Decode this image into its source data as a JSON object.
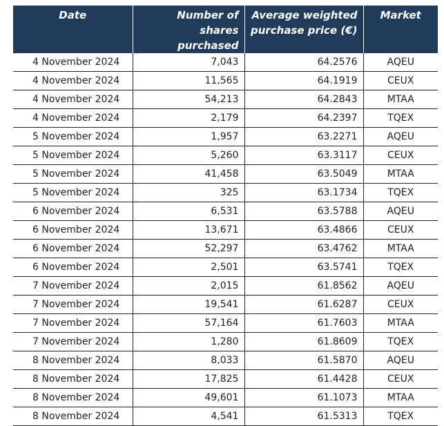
{
  "table": {
    "headers": {
      "date": "Date",
      "shares_line1": "Number of shares",
      "shares_line2": "purchased",
      "price_line1": "Average weighted",
      "price_line2": "purchase price (€)",
      "market": "Market"
    },
    "rows": [
      {
        "date": "4 November 2024",
        "shares": "7,043",
        "price": "64.2576",
        "market": "AQEU"
      },
      {
        "date": "4 November 2024",
        "shares": "11,565",
        "price": "64.1919",
        "market": "CEUX"
      },
      {
        "date": "4 November 2024",
        "shares": "54,213",
        "price": "64.2843",
        "market": "MTAA"
      },
      {
        "date": "4 November 2024",
        "shares": "2,179",
        "price": "64.2397",
        "market": "TQEX"
      },
      {
        "date": "5 November 2024",
        "shares": "1,957",
        "price": "63.2271",
        "market": "AQEU"
      },
      {
        "date": "5 November 2024",
        "shares": "5,260",
        "price": "63.3117",
        "market": "CEUX"
      },
      {
        "date": "5 November 2024",
        "shares": "41,458",
        "price": "63.5049",
        "market": "MTAA"
      },
      {
        "date": "5 November 2024",
        "shares": "325",
        "price": "63.1734",
        "market": "TQEX"
      },
      {
        "date": "6 November 2024",
        "shares": "6,531",
        "price": "63.5788",
        "market": "AQEU"
      },
      {
        "date": "6 November 2024",
        "shares": "13,671",
        "price": "63.4866",
        "market": "CEUX"
      },
      {
        "date": "6 November 2024",
        "shares": "52,297",
        "price": "63.4762",
        "market": "MTAA"
      },
      {
        "date": "6 November 2024",
        "shares": "2,501",
        "price": "63.5741",
        "market": "TQEX"
      },
      {
        "date": "7 November 2024",
        "shares": "2,015",
        "price": "61.8562",
        "market": "AQEU"
      },
      {
        "date": "7 November 2024",
        "shares": "19,541",
        "price": "61.6287",
        "market": "CEUX"
      },
      {
        "date": "7 November 2024",
        "shares": "57,164",
        "price": "61.7603",
        "market": "MTAA"
      },
      {
        "date": "7 November 2024",
        "shares": "1,280",
        "price": "61.8609",
        "market": "TQEX"
      },
      {
        "date": "8 November 2024",
        "shares": "8,033",
        "price": "61.5870",
        "market": "AQEU"
      },
      {
        "date": "8 November 2024",
        "shares": "17,825",
        "price": "61.4428",
        "market": "CEUX"
      },
      {
        "date": "8 November 2024",
        "shares": "49,601",
        "price": "61.1073",
        "market": "MTAA"
      },
      {
        "date": "8 November 2024",
        "shares": "4,541",
        "price": "61.5313",
        "market": "TQEX"
      }
    ]
  },
  "colors": {
    "header_background": "#213b5b",
    "header_text": "#ffffff",
    "grid_lines": "#1f1f1f"
  }
}
